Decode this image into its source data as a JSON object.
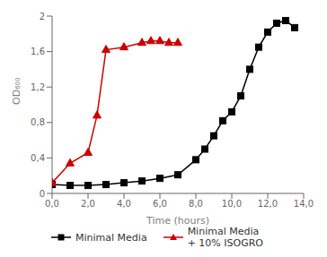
{
  "chart_data": {
    "type": "line",
    "xlabel": "Time (hours)",
    "ylabel": "OD₆₀₀",
    "xlim": [
      0,
      14
    ],
    "ylim": [
      0,
      2.0
    ],
    "xticks": [
      {
        "value": 0,
        "label": "0,0"
      },
      {
        "value": 2,
        "label": "2,0"
      },
      {
        "value": 4,
        "label": "4,0"
      },
      {
        "value": 6,
        "label": "6,0"
      },
      {
        "value": 8,
        "label": "8,0"
      },
      {
        "value": 10,
        "label": "10,0"
      },
      {
        "value": 12,
        "label": "12,0"
      },
      {
        "value": 14,
        "label": "14,0"
      }
    ],
    "yticks": [
      0,
      {
        "value": 0.4,
        "label": "0,4"
      },
      {
        "value": 0.8,
        "label": "0,8"
      },
      {
        "value": 1.2,
        "label": "1,2"
      },
      {
        "value": 1.6,
        "label": "1,6"
      },
      2
    ],
    "grid": false,
    "legend": "bottom",
    "series": [
      {
        "name": "Minimal Media",
        "color": "#000000",
        "marker": "square",
        "x": [
          0.0,
          1.0,
          2.0,
          3.0,
          4.0,
          5.0,
          6.0,
          7.0,
          8.0,
          8.5,
          9.0,
          9.5,
          10.0,
          10.5,
          11.0,
          11.5,
          12.0,
          12.5,
          13.0,
          13.5
        ],
        "values": [
          0.1,
          0.09,
          0.09,
          0.1,
          0.12,
          0.14,
          0.17,
          0.21,
          0.38,
          0.5,
          0.65,
          0.82,
          0.92,
          1.1,
          1.4,
          1.65,
          1.82,
          1.92,
          1.95,
          1.87
        ]
      },
      {
        "name": "Minimal Media\n+ 10% ISOGRO",
        "color": "#cc0000",
        "marker": "triangle",
        "x": [
          0.0,
          1.0,
          2.0,
          2.5,
          3.0,
          4.0,
          5.0,
          5.5,
          6.0,
          6.5,
          7.0
        ],
        "values": [
          0.12,
          0.34,
          0.46,
          0.88,
          1.62,
          1.65,
          1.7,
          1.72,
          1.72,
          1.7,
          1.7
        ]
      }
    ]
  }
}
